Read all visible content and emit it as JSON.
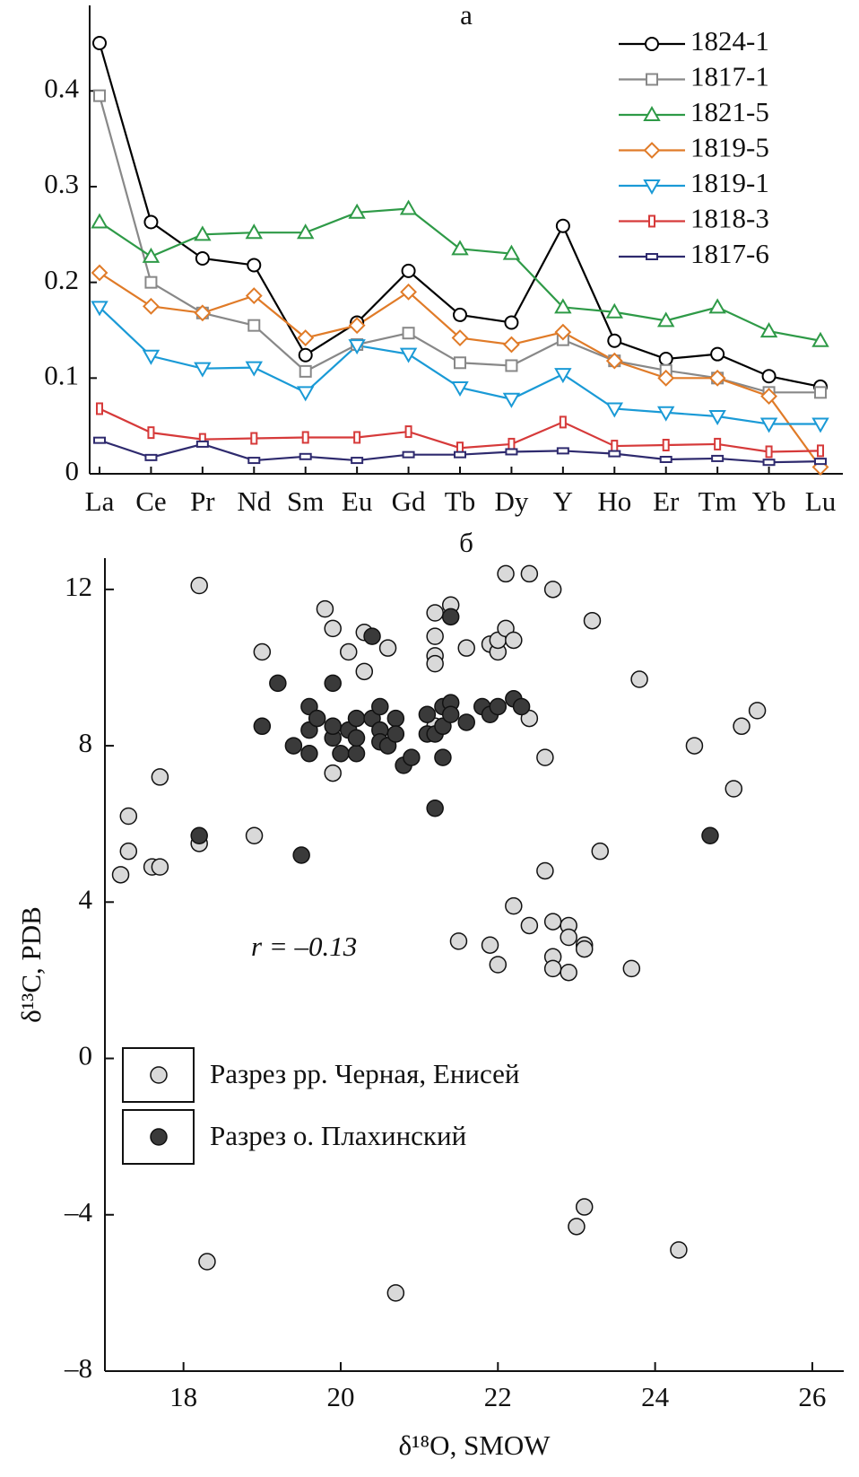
{
  "chart_data": [
    {
      "type": "line",
      "title": "а",
      "categories": [
        "La",
        "Ce",
        "Pr",
        "Nd",
        "Sm",
        "Eu",
        "Gd",
        "Tb",
        "Dy",
        "Y",
        "Ho",
        "Er",
        "Tm",
        "Yb",
        "Lu"
      ],
      "ylim": [
        0,
        0.48
      ],
      "yticks": [
        0,
        0.1,
        0.2,
        0.3,
        0.4
      ],
      "legend": "upper right",
      "series": [
        {
          "name": "1824-1",
          "color": "#000000",
          "marker": "circle",
          "values": [
            0.45,
            0.263,
            0.225,
            0.218,
            0.124,
            0.158,
            0.212,
            0.166,
            0.158,
            0.259,
            0.139,
            0.12,
            0.125,
            0.102,
            0.091
          ]
        },
        {
          "name": "1817-1",
          "color": "#888888",
          "marker": "square",
          "values": [
            0.395,
            0.2,
            0.168,
            0.155,
            0.107,
            0.135,
            0.147,
            0.116,
            0.113,
            0.14,
            0.118,
            0.108,
            0.1,
            0.085,
            0.085
          ]
        },
        {
          "name": "1821-5",
          "color": "#2e9a47",
          "marker": "triangle-up",
          "values": [
            0.263,
            0.227,
            0.25,
            0.252,
            0.252,
            0.273,
            0.277,
            0.235,
            0.23,
            0.174,
            0.169,
            0.16,
            0.174,
            0.149,
            0.139
          ]
        },
        {
          "name": "1819-5",
          "color": "#e07b28",
          "marker": "diamond",
          "values": [
            0.21,
            0.175,
            0.168,
            0.186,
            0.142,
            0.155,
            0.19,
            0.142,
            0.135,
            0.148,
            0.118,
            0.1,
            0.1,
            0.081,
            0.007
          ]
        },
        {
          "name": "1819-1",
          "color": "#1a9ad6",
          "marker": "triangle-down",
          "values": [
            0.174,
            0.123,
            0.11,
            0.111,
            0.085,
            0.134,
            0.125,
            0.09,
            0.078,
            0.104,
            0.068,
            0.064,
            0.06,
            0.052,
            0.052
          ]
        },
        {
          "name": "1818-3",
          "color": "#d63a3a",
          "marker": "vbar",
          "values": [
            0.068,
            0.043,
            0.036,
            0.037,
            0.038,
            0.038,
            0.044,
            0.027,
            0.031,
            0.054,
            0.029,
            0.03,
            0.031,
            0.023,
            0.024
          ]
        },
        {
          "name": "1817-6",
          "color": "#2e2a6e",
          "marker": "hbar",
          "values": [
            0.035,
            0.017,
            0.031,
            0.014,
            0.018,
            0.014,
            0.02,
            0.02,
            0.023,
            0.024,
            0.021,
            0.015,
            0.016,
            0.012,
            0.013
          ]
        }
      ]
    },
    {
      "type": "scatter",
      "title": "б",
      "xlabel": "δ¹⁸O, SMOW",
      "ylabel": "δ¹³C, PDB",
      "annotation": "r = –0.13",
      "xlim": [
        17,
        26.4
      ],
      "ylim": [
        -8,
        12.8
      ],
      "xticks": [
        18,
        20,
        22,
        24,
        26
      ],
      "yticks": [
        12,
        8,
        4,
        0,
        {
          "value": -4,
          "label": "–4"
        },
        {
          "value": -8,
          "label": "–8"
        }
      ],
      "legend": "center left",
      "series": [
        {
          "name": "Разрез рр. Черная, Енисей",
          "color": "#d9d9d9",
          "x": [
            17.2,
            17.3,
            17.3,
            17.6,
            17.7,
            17.7,
            18.2,
            18.2,
            18.3,
            18.9,
            19.0,
            19.8,
            19.9,
            20.1,
            20.3,
            20.3,
            19.9,
            20.6,
            20.7,
            21.2,
            21.2,
            21.2,
            21.2,
            21.4,
            21.6,
            21.9,
            22.0,
            22.0,
            22.1,
            22.2,
            22.1,
            22.4,
            22.7,
            23.2,
            23.8,
            22.4,
            22.6,
            22.6,
            23.3,
            22.2,
            22.4,
            22.7,
            22.9,
            22.9,
            23.1,
            23.1,
            22.7,
            22.7,
            22.9,
            23.7,
            21.5,
            21.9,
            22.0,
            24.5,
            25.1,
            25.3,
            25.0,
            23.0,
            23.1,
            24.3,
            21.2
          ],
          "y": [
            4.7,
            5.3,
            6.2,
            4.9,
            4.9,
            7.2,
            12.1,
            5.5,
            -5.2,
            5.7,
            10.4,
            11.5,
            11.0,
            10.4,
            10.9,
            9.9,
            7.3,
            10.5,
            -6.0,
            11.4,
            10.8,
            10.3,
            10.1,
            11.6,
            10.5,
            10.6,
            10.4,
            10.7,
            11.0,
            10.7,
            12.4,
            12.4,
            12.0,
            11.2,
            9.7,
            8.7,
            7.7,
            4.8,
            5.3,
            3.9,
            3.4,
            3.5,
            3.4,
            3.1,
            2.9,
            2.8,
            2.6,
            2.3,
            2.2,
            2.3,
            3.0,
            2.9,
            2.4,
            8.0,
            8.5,
            8.9,
            6.9,
            -4.3,
            -3.8,
            -4.9,
            8.5
          ]
        },
        {
          "name": "Разрез о. Плахинский",
          "color": "#3a3a3a",
          "x": [
            19.2,
            19.9,
            19.0,
            19.4,
            19.6,
            19.6,
            19.6,
            19.7,
            19.9,
            19.9,
            20.0,
            20.1,
            20.2,
            20.2,
            20.2,
            20.4,
            20.5,
            20.5,
            20.5,
            20.6,
            20.7,
            20.7,
            20.4,
            20.8,
            20.9,
            21.1,
            21.1,
            21.2,
            21.3,
            21.3,
            21.3,
            21.4,
            21.4,
            21.4,
            21.6,
            21.8,
            21.9,
            22.0,
            22.2,
            22.3,
            21.2,
            18.2,
            19.5,
            24.7
          ],
          "y": [
            9.6,
            9.6,
            8.5,
            8.0,
            9.0,
            8.4,
            7.8,
            8.7,
            8.2,
            8.5,
            7.8,
            8.4,
            7.8,
            8.7,
            8.2,
            8.7,
            9.0,
            8.4,
            8.1,
            8.0,
            8.7,
            8.3,
            10.8,
            7.5,
            7.7,
            8.8,
            8.3,
            8.3,
            9.0,
            8.5,
            7.7,
            9.1,
            8.8,
            11.3,
            8.6,
            9.0,
            8.8,
            9.0,
            9.2,
            9.0,
            6.4,
            5.7,
            5.2,
            5.7
          ]
        }
      ]
    }
  ]
}
